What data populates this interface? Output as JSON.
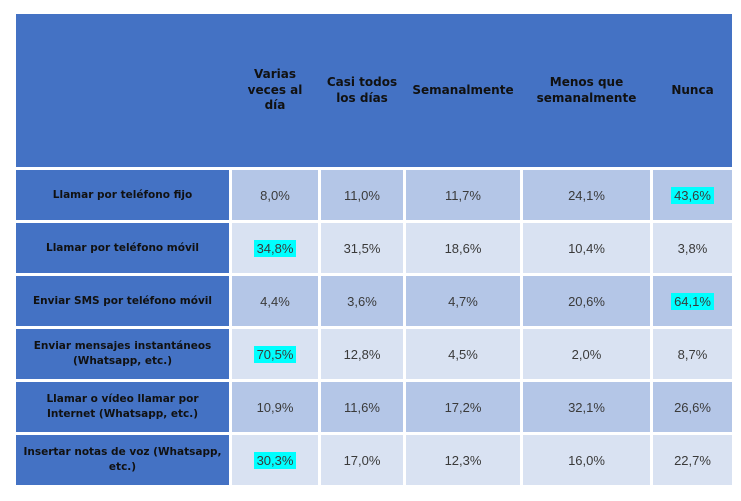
{
  "chart_data": {
    "type": "table",
    "title": "",
    "columns": [
      "Varias veces al día",
      "Casi todos los días",
      "Semanalmente",
      "Menos que semanalmente",
      "Nunca"
    ],
    "rows": [
      {
        "label": "Llamar por teléfono fijo",
        "values": [
          "8,0%",
          "11,0%",
          "11,7%",
          "24,1%",
          "43,6%"
        ],
        "highlighted": [
          4
        ]
      },
      {
        "label": "Llamar por teléfono móvil",
        "values": [
          "34,8%",
          "31,5%",
          "18,6%",
          "10,4%",
          "3,8%"
        ],
        "highlighted": [
          0
        ]
      },
      {
        "label": "Enviar SMS por teléfono móvil",
        "values": [
          "4,4%",
          "3,6%",
          "4,7%",
          "20,6%",
          "64,1%"
        ],
        "highlighted": [
          4
        ]
      },
      {
        "label": "Enviar mensajes instantáneos (Whatsapp, etc.)",
        "values": [
          "70,5%",
          "12,8%",
          "4,5%",
          "2,0%",
          "8,7%"
        ],
        "highlighted": [
          0
        ]
      },
      {
        "label": "Llamar o vídeo llamar por Internet (Whatsapp, etc.)",
        "values": [
          "10,9%",
          "11,6%",
          "17,2%",
          "32,1%",
          "26,6%"
        ],
        "highlighted": []
      },
      {
        "label": "Insertar notas de voz (Whatsapp, etc.)",
        "values": [
          "30,3%",
          "17,0%",
          "12,3%",
          "16,0%",
          "22,7%"
        ],
        "highlighted": [
          0
        ]
      }
    ],
    "layout": {
      "grid": "white 3px separators between cells",
      "header_merged": "header band is one continuous blue block",
      "legend": "none"
    }
  },
  "colors": {
    "header_bg": "#4472C4",
    "label_bg": "#4472C4",
    "row_odd_bg": "#B4C6E7",
    "row_even_bg": "#D9E2F2",
    "highlight_bg": "#00FFFF",
    "header_text": "#111111",
    "cell_text": "#3a3a3a",
    "page_bg": "#FFFFFF"
  }
}
